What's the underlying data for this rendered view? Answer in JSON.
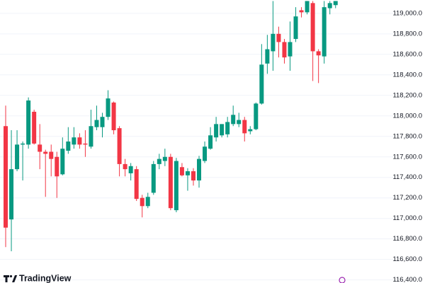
{
  "chart_data": {
    "type": "candlestick",
    "brand": "TradingView",
    "up_color": "#089981",
    "down_color": "#f23645",
    "grid": true,
    "ylim": [
      116370,
      119130
    ],
    "yticks": [
      {
        "value": 116400,
        "label": "116,400.0"
      },
      {
        "value": 116600,
        "label": "116,600.0"
      },
      {
        "value": 116800,
        "label": "116,800.0"
      },
      {
        "value": 117000,
        "label": "117,000.0"
      },
      {
        "value": 117200,
        "label": "117,200.0"
      },
      {
        "value": 117400,
        "label": "117,400.0"
      },
      {
        "value": 117600,
        "label": "117,600.0"
      },
      {
        "value": 117800,
        "label": "117,800.0"
      },
      {
        "value": 118000,
        "label": "118,000.0"
      },
      {
        "value": 118200,
        "label": "118,200.0"
      },
      {
        "value": 118400,
        "label": "118,400.0"
      },
      {
        "value": 118600,
        "label": "118,600.0"
      },
      {
        "value": 118800,
        "label": "118,800.0"
      },
      {
        "value": 119000,
        "label": "119,000.0"
      }
    ],
    "open": [
      117900,
      116990,
      117480,
      117720,
      117720,
      118040,
      117720,
      117650,
      117650,
      117600,
      117430,
      117660,
      117720,
      117790,
      117730,
      117700,
      117890,
      117890,
      117990,
      118130,
      117880,
      117530,
      117440,
      117480,
      117200,
      117120,
      117250,
      117530,
      117560,
      117600,
      117080,
      117500,
      117420,
      117460,
      117370,
      117560,
      117680,
      117790,
      117810,
      117820,
      117920,
      117920,
      117960,
      117850,
      117870,
      118120,
      118510,
      118630,
      118800,
      118720,
      118580,
      118750,
      119030,
      119010,
      119100,
      118630,
      118580,
      119050,
      119080
    ],
    "high": [
      118100,
      117860,
      117860,
      117750,
      118180,
      118060,
      117920,
      117670,
      117720,
      117650,
      117790,
      117890,
      117890,
      117830,
      117860,
      118060,
      118100,
      118030,
      118250,
      118140,
      117900,
      117580,
      117540,
      117510,
      117230,
      117250,
      117560,
      117630,
      117680,
      117630,
      117590,
      117540,
      117490,
      117490,
      117610,
      117750,
      117890,
      117990,
      117920,
      117990,
      118100,
      118030,
      117990,
      117900,
      118130,
      118700,
      118790,
      119120,
      118870,
      118750,
      118920,
      119060,
      119060,
      119120,
      119120,
      118650,
      119120,
      119120,
      119120
    ],
    "low": [
      116720,
      116680,
      117460,
      117370,
      117680,
      117720,
      117480,
      117210,
      117410,
      117200,
      117420,
      117630,
      117680,
      117680,
      117600,
      117680,
      117860,
      117790,
      117960,
      117820,
      117410,
      117410,
      117370,
      117170,
      117010,
      117100,
      117230,
      117480,
      117510,
      117080,
      117060,
      117410,
      117270,
      117320,
      117300,
      117540,
      117670,
      117750,
      117790,
      117790,
      117900,
      117890,
      117750,
      117820,
      117860,
      118110,
      118410,
      118440,
      118570,
      118510,
      118440,
      118720,
      118960,
      118990,
      118340,
      118320,
      118510,
      118990,
      119050
    ],
    "close": [
      116910,
      117480,
      117720,
      117730,
      118150,
      117730,
      117650,
      117630,
      117580,
      117410,
      117680,
      117750,
      117790,
      117720,
      117720,
      117900,
      117960,
      117990,
      118170,
      117860,
      117530,
      117480,
      117510,
      117190,
      117120,
      117210,
      117530,
      117580,
      117600,
      117100,
      117560,
      117420,
      117460,
      117370,
      117580,
      117700,
      117810,
      117920,
      117920,
      117940,
      118010,
      117960,
      117830,
      117870,
      118120,
      118500,
      118650,
      118800,
      118720,
      118570,
      118720,
      118970,
      119010,
      119120,
      118630,
      118590,
      119060,
      119100,
      119120
    ]
  }
}
